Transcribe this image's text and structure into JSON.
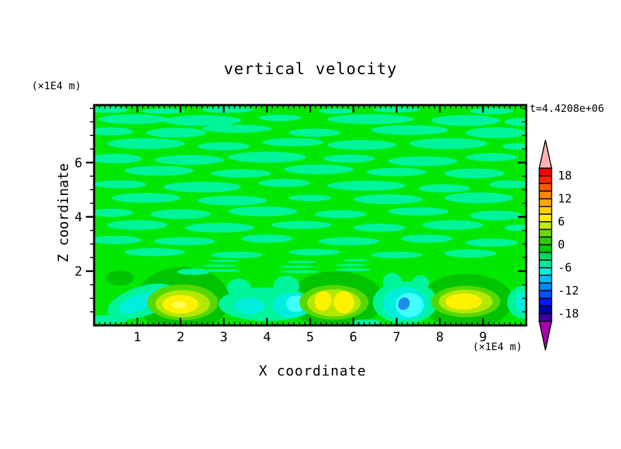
{
  "header": {
    "title": "vertical velocity",
    "timestamp": "t=4.4208e+06"
  },
  "axes": {
    "x_label": "X coordinate",
    "y_label": "Z coordinate",
    "x_unit": "(×1E4 m)",
    "y_unit": "(×1E4 m)",
    "x_tick_labels": [
      "1",
      "2",
      "3",
      "4",
      "5",
      "6",
      "7",
      "8",
      "9"
    ],
    "y_tick_labels": [
      "2",
      "4",
      "6"
    ]
  },
  "colorbar": {
    "labels": [
      "18",
      "12",
      "6",
      "0",
      "-6",
      "-12",
      "-18"
    ],
    "label_after_segment": [
      1,
      4,
      7,
      10,
      13,
      16,
      19
    ],
    "segments": [
      "#FF0000",
      "#FF2400",
      "#FF5A00",
      "#FF8800",
      "#FFAC00",
      "#FFD200",
      "#FFF000",
      "#BEEC00",
      "#6AD800",
      "#30CC00",
      "#00CE00",
      "#00DA60",
      "#00E69C",
      "#00EEDC",
      "#00BBFF",
      "#0088FF",
      "#0050FF",
      "#0018F0",
      "#0000B4",
      "#3C00A8"
    ],
    "over_color": "#FFB0B4",
    "under_color": "#AA00AA",
    "outline_color": "#000000"
  },
  "chart_data": {
    "type": "heatmap",
    "title": "vertical velocity",
    "xlabel": "X coordinate (×1E4 m)",
    "ylabel": "Z coordinate (×1E4 m)",
    "x_range": [
      0,
      10
    ],
    "y_range": [
      0,
      8.12
    ],
    "x_major_ticks": [
      1,
      2,
      3,
      4,
      5,
      6,
      7,
      8,
      9
    ],
    "x_minor_step": 0.125,
    "y_major_ticks": [
      2,
      4,
      6
    ],
    "y_minor_step": 0.5,
    "contour_level_step": 2,
    "value_at_labels": {
      "colorbar_min": -20,
      "colorbar_max": 20
    },
    "background_value_range": [
      0,
      2
    ],
    "background_color": "#00E800",
    "streak_color": "#00F59B",
    "feature_colors": {
      "mint": "#00F59B",
      "cyan": "#00EFDC",
      "bright_cyan": "#41FFFF",
      "blue": "#1E8FE8",
      "dark_green": "#00C400",
      "green_yellow": "#55D800",
      "yellow_green": "#B4E800",
      "yellow": "#FFF200",
      "bright_yellow": "#FFFF55"
    },
    "streaks": [
      [
        0.35,
        7.95,
        0.45,
        0.12
      ],
      [
        1.6,
        7.9,
        0.5,
        0.1
      ],
      [
        3.1,
        7.95,
        0.6,
        0.12
      ],
      [
        5.6,
        7.9,
        0.4,
        0.1
      ],
      [
        7.0,
        7.95,
        0.55,
        0.1
      ],
      [
        9.2,
        7.9,
        0.5,
        0.12
      ],
      [
        0.9,
        7.6,
        0.8,
        0.18
      ],
      [
        2.5,
        7.55,
        0.9,
        0.2
      ],
      [
        4.3,
        7.65,
        0.5,
        0.12
      ],
      [
        6.4,
        7.6,
        1.0,
        0.18
      ],
      [
        8.6,
        7.55,
        0.8,
        0.2
      ],
      [
        9.9,
        7.5,
        0.4,
        0.15
      ],
      [
        0.4,
        7.15,
        0.5,
        0.15
      ],
      [
        1.9,
        7.1,
        0.7,
        0.18
      ],
      [
        3.3,
        7.25,
        0.8,
        0.15
      ],
      [
        5.1,
        7.1,
        0.6,
        0.15
      ],
      [
        7.3,
        7.2,
        0.9,
        0.18
      ],
      [
        9.3,
        7.1,
        0.7,
        0.2
      ],
      [
        1.2,
        6.7,
        0.9,
        0.2
      ],
      [
        3.0,
        6.6,
        0.6,
        0.15
      ],
      [
        4.6,
        6.75,
        0.7,
        0.15
      ],
      [
        6.2,
        6.65,
        0.8,
        0.18
      ],
      [
        8.2,
        6.7,
        0.9,
        0.2
      ],
      [
        9.8,
        6.6,
        0.35,
        0.12
      ],
      [
        0.5,
        6.15,
        0.6,
        0.18
      ],
      [
        2.2,
        6.1,
        0.8,
        0.18
      ],
      [
        4.0,
        6.2,
        0.9,
        0.2
      ],
      [
        5.9,
        6.15,
        0.6,
        0.15
      ],
      [
        7.6,
        6.05,
        0.8,
        0.18
      ],
      [
        9.2,
        6.2,
        0.6,
        0.15
      ],
      [
        1.5,
        5.7,
        0.8,
        0.18
      ],
      [
        3.4,
        5.6,
        0.7,
        0.15
      ],
      [
        5.2,
        5.75,
        0.8,
        0.18
      ],
      [
        7.0,
        5.65,
        0.7,
        0.15
      ],
      [
        8.8,
        5.6,
        0.7,
        0.18
      ],
      [
        0.6,
        5.2,
        0.6,
        0.15
      ],
      [
        2.5,
        5.1,
        0.9,
        0.2
      ],
      [
        4.4,
        5.25,
        0.6,
        0.15
      ],
      [
        6.3,
        5.15,
        0.9,
        0.18
      ],
      [
        8.1,
        5.05,
        0.6,
        0.15
      ],
      [
        9.6,
        5.2,
        0.45,
        0.15
      ],
      [
        1.2,
        4.7,
        0.8,
        0.18
      ],
      [
        3.2,
        4.6,
        0.8,
        0.18
      ],
      [
        5.0,
        4.7,
        0.5,
        0.12
      ],
      [
        6.8,
        4.65,
        0.8,
        0.18
      ],
      [
        8.9,
        4.7,
        0.8,
        0.2
      ],
      [
        0.4,
        4.15,
        0.5,
        0.15
      ],
      [
        2.0,
        4.1,
        0.7,
        0.18
      ],
      [
        3.9,
        4.2,
        0.8,
        0.18
      ],
      [
        5.7,
        4.1,
        0.6,
        0.15
      ],
      [
        7.5,
        4.2,
        0.7,
        0.15
      ],
      [
        9.3,
        4.05,
        0.6,
        0.18
      ],
      [
        1.0,
        3.7,
        0.7,
        0.18
      ],
      [
        2.9,
        3.6,
        0.8,
        0.18
      ],
      [
        4.8,
        3.7,
        0.7,
        0.15
      ],
      [
        6.6,
        3.6,
        0.6,
        0.15
      ],
      [
        8.3,
        3.7,
        0.7,
        0.18
      ],
      [
        9.8,
        3.6,
        0.3,
        0.12
      ],
      [
        0.5,
        3.15,
        0.6,
        0.15
      ],
      [
        2.1,
        3.1,
        0.7,
        0.15
      ],
      [
        4.0,
        3.2,
        0.6,
        0.15
      ],
      [
        5.9,
        3.1,
        0.7,
        0.15
      ],
      [
        7.7,
        3.2,
        0.6,
        0.15
      ],
      [
        9.2,
        3.05,
        0.6,
        0.15
      ],
      [
        1.4,
        2.7,
        0.7,
        0.15
      ],
      [
        3.3,
        2.6,
        0.6,
        0.12
      ],
      [
        5.1,
        2.7,
        0.6,
        0.12
      ],
      [
        7.0,
        2.6,
        0.6,
        0.12
      ],
      [
        8.7,
        2.65,
        0.6,
        0.15
      ],
      [
        2.95,
        2.02,
        0.45,
        0.05
      ],
      [
        2.9,
        2.2,
        0.4,
        0.04
      ],
      [
        3.0,
        2.38,
        0.35,
        0.04
      ],
      [
        4.75,
        1.98,
        0.45,
        0.05
      ],
      [
        4.7,
        2.16,
        0.4,
        0.04
      ],
      [
        4.8,
        2.34,
        0.35,
        0.04
      ],
      [
        6.0,
        2.05,
        0.4,
        0.05
      ],
      [
        5.95,
        2.22,
        0.35,
        0.04
      ],
      [
        6.05,
        2.4,
        0.3,
        0.04
      ]
    ],
    "features": [
      {
        "x": 2.05,
        "y": 0.95,
        "rx": 1.08,
        "ry": 1.2,
        "c": "dark_green"
      },
      {
        "x": 5.6,
        "y": 0.95,
        "rx": 1.1,
        "ry": 1.05,
        "c": "dark_green"
      },
      {
        "x": 8.62,
        "y": 0.9,
        "rx": 1.08,
        "ry": 1.0,
        "c": "dark_green"
      },
      {
        "x": 0.6,
        "y": 1.75,
        "rx": 0.32,
        "ry": 0.28,
        "c": "dark_green"
      },
      {
        "x": 0.28,
        "y": 0.22,
        "rx": 0.5,
        "ry": 0.16,
        "c": "mint"
      },
      {
        "x": 1.1,
        "y": 0.88,
        "rx": 0.82,
        "ry": 0.55,
        "rot": -18,
        "c": "mint"
      },
      {
        "x": 2.3,
        "y": 1.98,
        "rx": 0.38,
        "ry": 0.12,
        "c": "mint"
      },
      {
        "x": 4.0,
        "y": 0.78,
        "rx": 1.12,
        "ry": 0.62,
        "c": "mint"
      },
      {
        "x": 3.35,
        "y": 1.4,
        "rx": 0.28,
        "ry": 0.32,
        "c": "mint"
      },
      {
        "x": 4.45,
        "y": 1.45,
        "rx": 0.3,
        "ry": 0.38,
        "c": "mint"
      },
      {
        "x": 7.2,
        "y": 0.85,
        "rx": 0.75,
        "ry": 0.78,
        "c": "mint"
      },
      {
        "x": 6.9,
        "y": 1.6,
        "rx": 0.22,
        "ry": 0.34,
        "c": "mint"
      },
      {
        "x": 7.55,
        "y": 1.55,
        "rx": 0.2,
        "ry": 0.3,
        "c": "mint"
      },
      {
        "x": 9.98,
        "y": 0.85,
        "rx": 0.42,
        "ry": 0.62,
        "c": "mint"
      },
      {
        "x": 6.3,
        "y": 0.12,
        "rx": 0.35,
        "ry": 0.1,
        "c": "mint"
      },
      {
        "x": 1.0,
        "y": 0.82,
        "rx": 0.46,
        "ry": 0.3,
        "rot": -22,
        "c": "cyan"
      },
      {
        "x": 1.42,
        "y": 1.18,
        "rx": 0.2,
        "ry": 0.13,
        "rot": -20,
        "c": "cyan"
      },
      {
        "x": 3.6,
        "y": 0.72,
        "rx": 0.36,
        "ry": 0.3,
        "c": "cyan"
      },
      {
        "x": 4.55,
        "y": 0.75,
        "rx": 0.42,
        "ry": 0.46,
        "c": "cyan"
      },
      {
        "x": 7.2,
        "y": 0.8,
        "rx": 0.52,
        "ry": 0.6,
        "c": "cyan"
      },
      {
        "x": 10.02,
        "y": 0.85,
        "rx": 0.26,
        "ry": 0.42,
        "c": "cyan"
      },
      {
        "x": 4.68,
        "y": 0.8,
        "rx": 0.24,
        "ry": 0.3,
        "c": "bright_cyan"
      },
      {
        "x": 7.3,
        "y": 0.75,
        "rx": 0.32,
        "ry": 0.45,
        "c": "bright_cyan"
      },
      {
        "x": 7.17,
        "y": 0.8,
        "rx": 0.13,
        "ry": 0.24,
        "rot": 28,
        "c": "blue"
      },
      {
        "x": 2.05,
        "y": 0.85,
        "rx": 0.82,
        "ry": 0.66,
        "c": "green_yellow"
      },
      {
        "x": 5.55,
        "y": 0.85,
        "rx": 0.8,
        "ry": 0.64,
        "c": "green_yellow"
      },
      {
        "x": 8.6,
        "y": 0.88,
        "rx": 0.8,
        "ry": 0.58,
        "c": "green_yellow"
      },
      {
        "x": 2.05,
        "y": 0.8,
        "rx": 0.63,
        "ry": 0.5,
        "c": "yellow_green"
      },
      {
        "x": 5.55,
        "y": 0.83,
        "rx": 0.62,
        "ry": 0.5,
        "c": "yellow_green"
      },
      {
        "x": 8.6,
        "y": 0.88,
        "rx": 0.62,
        "ry": 0.44,
        "c": "yellow_green"
      },
      {
        "x": 2.0,
        "y": 0.78,
        "rx": 0.42,
        "ry": 0.34,
        "c": "yellow"
      },
      {
        "x": 5.3,
        "y": 0.9,
        "rx": 0.2,
        "ry": 0.36,
        "rot": 12,
        "c": "yellow"
      },
      {
        "x": 5.78,
        "y": 0.85,
        "rx": 0.24,
        "ry": 0.4,
        "rot": -8,
        "c": "yellow"
      },
      {
        "x": 8.55,
        "y": 0.88,
        "rx": 0.42,
        "ry": 0.3,
        "c": "yellow"
      },
      {
        "x": 1.97,
        "y": 0.76,
        "rx": 0.17,
        "ry": 0.13,
        "c": "bright_yellow"
      }
    ],
    "legend_position": "right",
    "grid": false
  }
}
